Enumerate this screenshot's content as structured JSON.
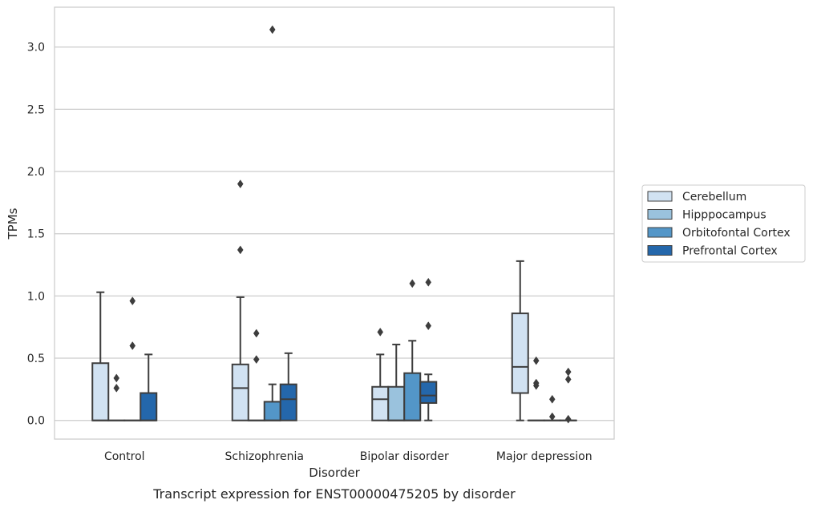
{
  "chart_data": {
    "type": "box",
    "caption": "Transcript expression for ENST00000475205 by disorder",
    "xlabel": "Disorder",
    "ylabel": "TPMs",
    "ylim": [
      -0.15,
      3.32
    ],
    "yticks": [
      0.0,
      0.5,
      1.0,
      1.5,
      2.0,
      2.5,
      3.0
    ],
    "ytick_labels": [
      "0.0",
      "0.5",
      "1.0",
      "1.5",
      "2.0",
      "2.5",
      "3.0"
    ],
    "grid": "horizontal",
    "legend_position": "right",
    "categories": [
      "Control",
      "Schizophrenia",
      "Bipolar disorder",
      "Major depression"
    ],
    "series": [
      {
        "name": "Cerebellum",
        "color": "#d1e2f2",
        "boxes": [
          {
            "q1": 0.0,
            "median": 0.0,
            "q3": 0.46,
            "whisker_low": 0.0,
            "whisker_high": 1.03,
            "outliers": []
          },
          {
            "q1": 0.0,
            "median": 0.26,
            "q3": 0.45,
            "whisker_low": 0.0,
            "whisker_high": 0.99,
            "outliers": [
              1.9,
              1.37
            ]
          },
          {
            "q1": 0.0,
            "median": 0.17,
            "q3": 0.27,
            "whisker_low": 0.0,
            "whisker_high": 0.53,
            "outliers": [
              0.71
            ]
          },
          {
            "q1": 0.22,
            "median": 0.43,
            "q3": 0.86,
            "whisker_low": 0.0,
            "whisker_high": 1.28,
            "outliers": []
          }
        ]
      },
      {
        "name": "Hipppocampus",
        "color": "#9ac2dd",
        "boxes": [
          {
            "q1": 0.0,
            "median": 0.0,
            "q3": 0.0,
            "whisker_low": 0.0,
            "whisker_high": 0.0,
            "outliers": [
              0.34,
              0.26
            ]
          },
          {
            "q1": 0.0,
            "median": 0.0,
            "q3": 0.0,
            "whisker_low": 0.0,
            "whisker_high": 0.0,
            "outliers": [
              0.7,
              0.49
            ]
          },
          {
            "q1": 0.0,
            "median": 0.0,
            "q3": 0.27,
            "whisker_low": 0.0,
            "whisker_high": 0.61,
            "outliers": []
          },
          {
            "q1": 0.0,
            "median": 0.0,
            "q3": 0.0,
            "whisker_low": 0.0,
            "whisker_high": 0.0,
            "outliers": [
              0.48,
              0.3,
              0.28
            ]
          }
        ]
      },
      {
        "name": "Orbitofontal Cortex",
        "color": "#5396c8",
        "boxes": [
          {
            "q1": 0.0,
            "median": 0.0,
            "q3": 0.0,
            "whisker_low": 0.0,
            "whisker_high": 0.0,
            "outliers": [
              0.96,
              0.6
            ]
          },
          {
            "q1": 0.0,
            "median": 0.0,
            "q3": 0.15,
            "whisker_low": 0.0,
            "whisker_high": 0.29,
            "outliers": [
              3.14
            ]
          },
          {
            "q1": 0.0,
            "median": 0.0,
            "q3": 0.38,
            "whisker_low": 0.0,
            "whisker_high": 0.64,
            "outliers": [
              1.1
            ]
          },
          {
            "q1": 0.0,
            "median": 0.0,
            "q3": 0.0,
            "whisker_low": 0.0,
            "whisker_high": 0.0,
            "outliers": [
              0.17,
              0.03
            ]
          }
        ]
      },
      {
        "name": "Prefrontal Cortex",
        "color": "#2467ab",
        "boxes": [
          {
            "q1": 0.0,
            "median": 0.0,
            "q3": 0.22,
            "whisker_low": 0.0,
            "whisker_high": 0.53,
            "outliers": []
          },
          {
            "q1": 0.0,
            "median": 0.17,
            "q3": 0.29,
            "whisker_low": 0.0,
            "whisker_high": 0.54,
            "outliers": []
          },
          {
            "q1": 0.14,
            "median": 0.2,
            "q3": 0.31,
            "whisker_low": 0.0,
            "whisker_high": 0.37,
            "outliers": [
              1.11,
              0.76
            ]
          },
          {
            "q1": 0.0,
            "median": 0.0,
            "q3": 0.0,
            "whisker_low": 0.0,
            "whisker_high": 0.0,
            "outliers": [
              0.39,
              0.33,
              0.01
            ]
          }
        ]
      }
    ]
  }
}
